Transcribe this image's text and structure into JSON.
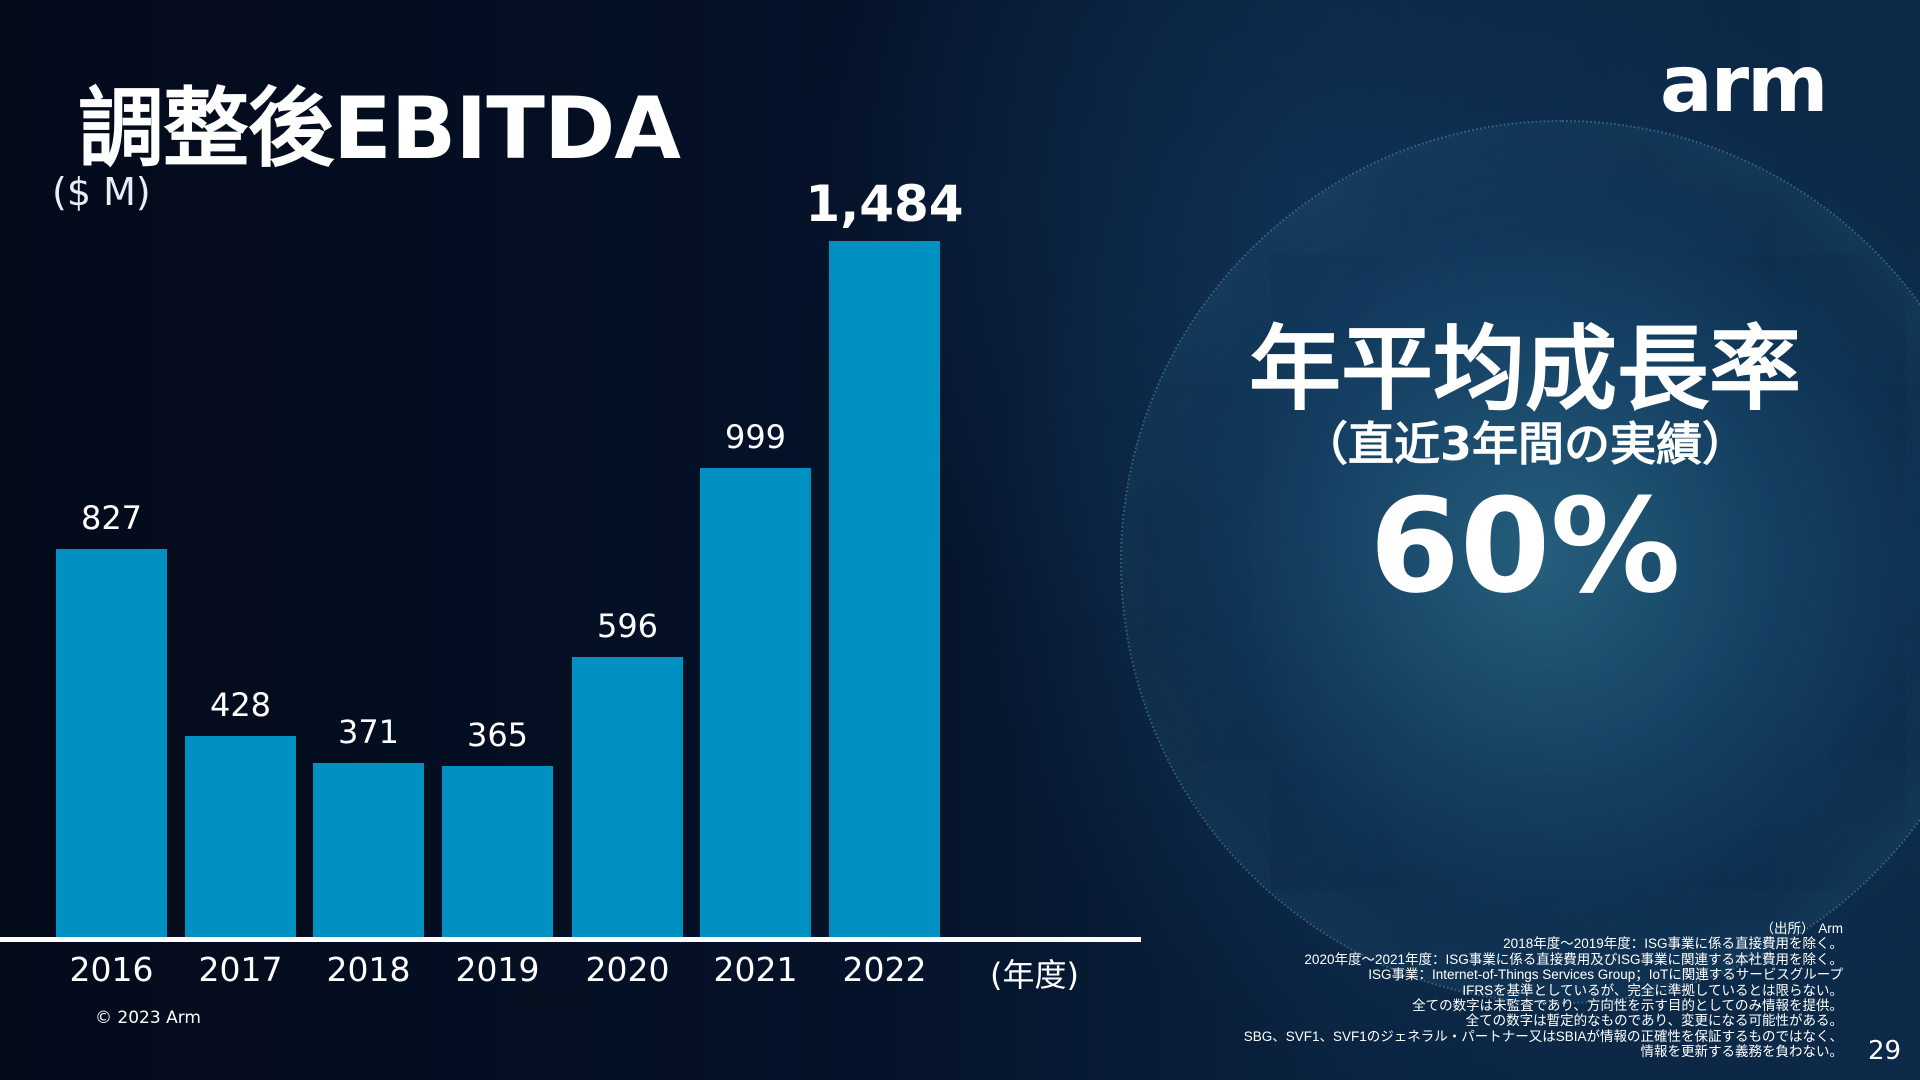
{
  "title": "調整後EBITDA",
  "logo": "arm",
  "chart_data": {
    "type": "bar",
    "title": "調整後EBITDA",
    "ylabel": "($ M)",
    "xlabel": "(年度)",
    "axis_placeholder": "軸ラベル",
    "categories": [
      "2016",
      "2017",
      "2018",
      "2019",
      "2020",
      "2021",
      "2022"
    ],
    "values": [
      827,
      428,
      371,
      365,
      596,
      999,
      1484
    ],
    "labels": [
      "827",
      "428",
      "371",
      "365",
      "596",
      "999",
      "1,484"
    ],
    "ylim": [
      0,
      1484
    ],
    "grid": false,
    "bar_color": "#0091c2"
  },
  "cagr": {
    "heading": "年平均成長率",
    "sub": "（直近3年間の実績）",
    "value": "60%"
  },
  "copyright": "© 2023 Arm",
  "notes": [
    "（出所） Arm",
    "2018年度～2019年度：ISG事業に係る直接費用を除く。",
    "2020年度～2021年度：ISG事業に係る直接費用及びISG事業に関連する本社費用を除く。",
    "ISG事業：Internet-of-Things Services Group；IoTに関連するサービスグループ",
    "IFRSを基準としているが、完全に準拠しているとは限らない。",
    "全ての数字は未監査であり、方向性を示す目的としてのみ情報を提供。",
    "全ての数字は暫定的なものであり、変更になる可能性がある。",
    "SBG、SVF1、SVF1のジェネラル・パートナー又はSBIAが情報の正確性を保証するものではなく、",
    "情報を更新する義務を負わない。"
  ],
  "page_number": "29"
}
